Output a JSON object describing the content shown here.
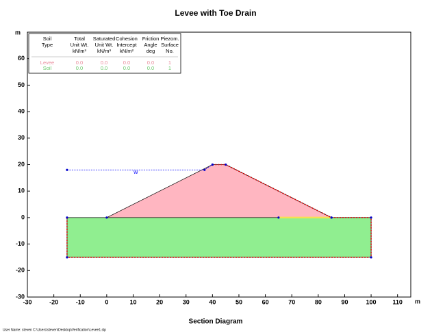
{
  "chart_data": {
    "type": "section",
    "title": "Levee with Toe Drain",
    "xlabel": "Section Diagram",
    "x_unit": "m",
    "y_unit": "m",
    "footer": "User Name: steven   C:\\Users\\steven\\Desktop\\Verification\\Levee1.slp",
    "xlim": [
      -30,
      115
    ],
    "ylim": [
      -30,
      70
    ],
    "xticks": [
      -30,
      -20,
      -10,
      0,
      10,
      20,
      30,
      40,
      50,
      60,
      70,
      80,
      90,
      100,
      110
    ],
    "yticks": [
      -30,
      -20,
      -10,
      0,
      10,
      20,
      30,
      40,
      50,
      60
    ],
    "regions": [
      {
        "name": "Levee",
        "color": "#ffb6c1",
        "x": [
          0,
          40,
          45,
          85
        ],
        "y": [
          0,
          20,
          20,
          0
        ]
      },
      {
        "name": "Soil",
        "color": "#90ee90",
        "x": [
          -15,
          100,
          100,
          -15
        ],
        "y": [
          0,
          0,
          -15,
          -15
        ]
      }
    ],
    "piezometric_line": {
      "name": "W",
      "color": "#0000ff",
      "x": [
        -15,
        37,
        40
      ],
      "y": [
        18,
        18,
        20
      ]
    },
    "drain": {
      "color": "#f5e050",
      "x": [
        65,
        85
      ],
      "y": [
        0,
        0
      ]
    },
    "boundary": {
      "color": "#dd0000",
      "x": [
        40,
        45,
        85,
        100,
        100,
        -15,
        -15
      ],
      "y": [
        20,
        20,
        0,
        0,
        -15,
        -15,
        0
      ]
    },
    "legend_table": {
      "headers": [
        [
          "Soil",
          "Type"
        ],
        [
          "Total",
          "Unit Wt.",
          "kN/m³"
        ],
        [
          "Saturated",
          "Unit Wt.",
          "kN/m³"
        ],
        [
          "Cohesion",
          "Intercept",
          "kN/m²"
        ],
        [
          "Friction",
          "Angle",
          "deg"
        ],
        [
          "Piezom.",
          "Surface",
          "No."
        ]
      ],
      "rows": [
        [
          "Levee",
          "0.0",
          "0.0",
          "0.0",
          "0.0",
          "1"
        ],
        [
          "Soil",
          "0.0",
          "0.0",
          "0.0",
          "0.0",
          "1"
        ]
      ]
    }
  }
}
